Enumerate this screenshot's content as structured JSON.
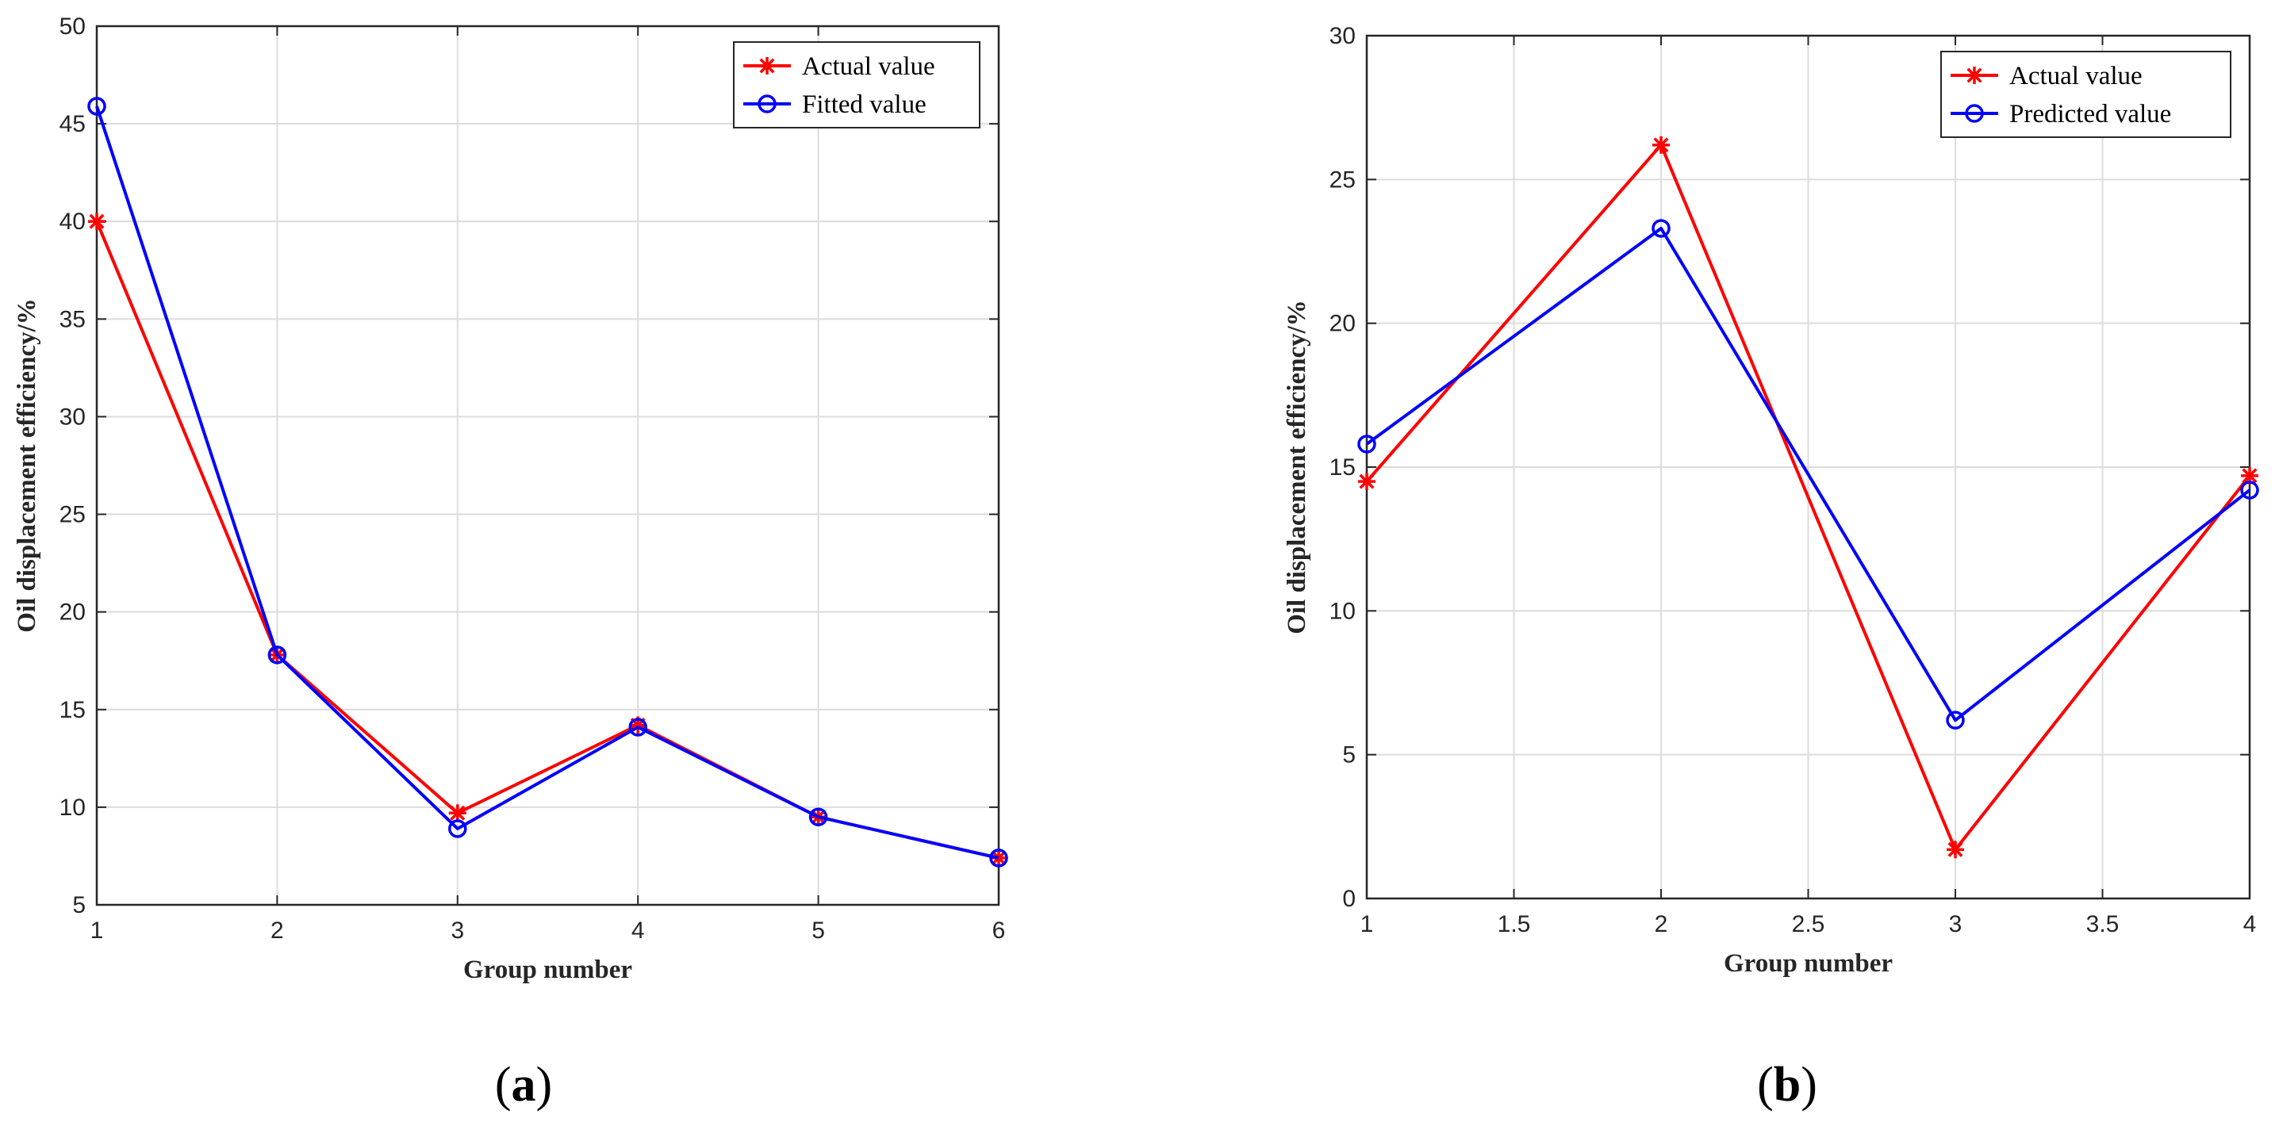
{
  "chart_data": [
    {
      "type": "line",
      "panel_label": "a",
      "xlabel": "Group number",
      "ylabel": "Oil displacement efficiency/%",
      "xlim": [
        1,
        6
      ],
      "ylim": [
        5,
        50
      ],
      "xticks": [
        "1",
        "2",
        "3",
        "4",
        "5",
        "6"
      ],
      "yticks": [
        "5",
        "10",
        "15",
        "20",
        "25",
        "30",
        "35",
        "40",
        "45",
        "50"
      ],
      "grid": true,
      "legend_position": "top-right",
      "x": [
        1,
        2,
        3,
        4,
        5,
        6
      ],
      "series": [
        {
          "name": "Actual value",
          "color": "#ff0000",
          "marker": "asterisk",
          "values": [
            40.0,
            17.8,
            9.7,
            14.2,
            9.5,
            7.4
          ]
        },
        {
          "name": "Fitted value",
          "color": "#0000ff",
          "marker": "circle",
          "values": [
            45.9,
            17.8,
            8.9,
            14.1,
            9.5,
            7.4
          ]
        }
      ]
    },
    {
      "type": "line",
      "panel_label": "b",
      "xlabel": "Group number",
      "ylabel": "Oil displacement efficiency/%",
      "xlim": [
        1,
        4
      ],
      "ylim": [
        0,
        30
      ],
      "xticks": [
        "1",
        "1.5",
        "2",
        "2.5",
        "3",
        "3.5",
        "4"
      ],
      "yticks": [
        "0",
        "5",
        "10",
        "15",
        "20",
        "25",
        "30"
      ],
      "grid": true,
      "legend_position": "top-right",
      "x": [
        1,
        2,
        3,
        4
      ],
      "series": [
        {
          "name": "Actual value",
          "color": "#ff0000",
          "marker": "asterisk",
          "values": [
            14.5,
            26.2,
            1.7,
            14.7
          ]
        },
        {
          "name": "Predicted value",
          "color": "#0000ff",
          "marker": "circle",
          "values": [
            15.8,
            23.3,
            6.2,
            14.2
          ]
        }
      ]
    }
  ]
}
